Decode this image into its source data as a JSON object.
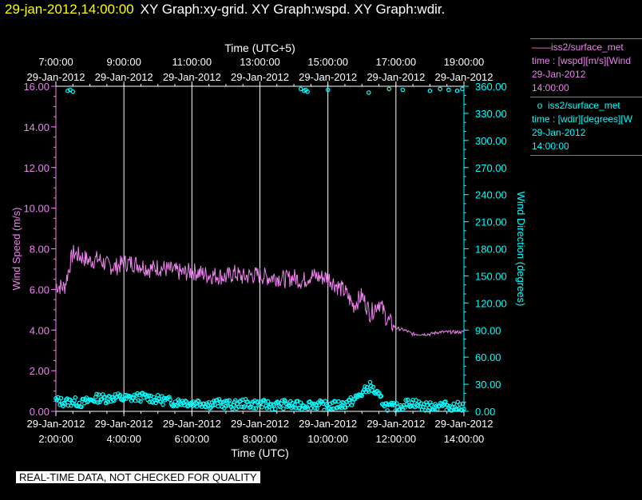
{
  "header": {
    "timestamp": "29-jan-2012,14:00:00",
    "titles": "XY Graph:xy-grid.  XY Graph:wspd.  XY Graph:wdir."
  },
  "legend": {
    "series1_name": "iss2/surface_met",
    "series1_line2": "time : [wspd][m/s][Wind",
    "series1_line3": "29-Jan-2012",
    "series1_line4": "14:00:00",
    "series2_name": "iss2/surface_met",
    "series2_line2": "time : [wdir][degrees][W",
    "series2_line3": "29-Jan-2012",
    "series2_line4": "14:00:00"
  },
  "footer": {
    "quality_note": "REAL-TIME DATA, NOT CHECKED FOR QUALITY"
  },
  "colors": {
    "speed": "#ee82ee",
    "direction": "#00ffff",
    "grid": "#ffffff",
    "header": "#ffff00"
  },
  "chart_data": {
    "type": "line",
    "top_axis_title": "Time (UTC+5)",
    "bottom_axis_title": "Time (UTC)",
    "xlim_hours_utc": [
      2,
      14
    ],
    "x_ticks_bottom": [
      {
        "date": "29-Jan-2012",
        "time": "2:00:00"
      },
      {
        "date": "29-Jan-2012",
        "time": "4:00:00"
      },
      {
        "date": "29-Jan-2012",
        "time": "6:00:00"
      },
      {
        "date": "29-Jan-2012",
        "time": "8:00:00"
      },
      {
        "date": "29-Jan-2012",
        "time": "10:00:00"
      },
      {
        "date": "29-Jan-2012",
        "time": "12:00:00"
      },
      {
        "date": "29-Jan-2012",
        "time": "14:00:00"
      }
    ],
    "x_ticks_top": [
      {
        "time": "7:00:00",
        "date": "29-Jan-2012"
      },
      {
        "time": "9:00:00",
        "date": "29-Jan-2012"
      },
      {
        "time": "11:00:00",
        "date": "29-Jan-2012"
      },
      {
        "time": "13:00:00",
        "date": "29-Jan-2012"
      },
      {
        "time": "15:00:00",
        "date": "29-Jan-2012"
      },
      {
        "time": "17:00:00",
        "date": "29-Jan-2012"
      },
      {
        "time": "19:00:00",
        "date": "29-Jan-2012"
      }
    ],
    "left_axis": {
      "label": "Wind Speed (m/s)",
      "ylim": [
        0,
        16
      ],
      "ticks": [
        "0.00",
        "2.00",
        "4.00",
        "6.00",
        "8.00",
        "10.00",
        "12.00",
        "14.00",
        "16.00"
      ]
    },
    "right_axis": {
      "label": "Wind Direction (degrees)",
      "ylim": [
        0,
        360
      ],
      "ticks": [
        "0.00",
        "30.00",
        "60.00",
        "90.00",
        "120.00",
        "150.00",
        "180.00",
        "210.00",
        "240.00",
        "270.00",
        "300.00",
        "330.00",
        "360.00"
      ]
    },
    "grid": "vertical",
    "series": [
      {
        "name": "iss2/surface_met",
        "quantity": "wspd",
        "axis": "left",
        "style": "line",
        "x_hours_utc": [
          2.0,
          2.25,
          2.5,
          2.75,
          3.0,
          3.25,
          3.5,
          3.75,
          4.0,
          4.25,
          4.5,
          4.75,
          5.0,
          5.25,
          5.5,
          5.75,
          6.0,
          6.25,
          6.5,
          6.75,
          7.0,
          7.25,
          7.5,
          7.75,
          8.0,
          8.25,
          8.5,
          8.75,
          9.0,
          9.25,
          9.5,
          9.75,
          10.0,
          10.25,
          10.5,
          10.75,
          11.0,
          11.25,
          11.5,
          11.75,
          12.0,
          12.25,
          12.5,
          12.75,
          13.0,
          13.25,
          13.5,
          13.75,
          14.0
        ],
        "values": [
          6.2,
          6.1,
          7.8,
          7.6,
          7.4,
          7.5,
          7.2,
          7.1,
          7.3,
          7.3,
          7.2,
          7.0,
          7.1,
          7.0,
          6.9,
          6.8,
          6.9,
          6.8,
          6.7,
          6.7,
          6.6,
          6.8,
          6.6,
          6.7,
          6.7,
          6.6,
          6.6,
          6.5,
          6.6,
          6.4,
          6.7,
          6.6,
          6.6,
          6.2,
          5.9,
          5.2,
          5.7,
          4.8,
          5.4,
          4.5,
          4.1,
          4.0,
          3.8,
          3.8,
          3.8,
          3.9,
          3.9,
          3.9,
          3.9
        ]
      },
      {
        "name": "iss2/surface_met",
        "quantity": "wdir",
        "axis": "right",
        "style": "points",
        "x_hours_utc": [
          2.0,
          2.25,
          2.5,
          2.75,
          3.0,
          3.25,
          3.5,
          3.75,
          4.0,
          4.25,
          4.5,
          4.75,
          5.0,
          5.25,
          5.5,
          5.75,
          6.0,
          6.25,
          6.5,
          6.75,
          7.0,
          7.25,
          7.5,
          7.75,
          8.0,
          8.25,
          8.5,
          8.75,
          9.0,
          9.25,
          9.5,
          9.75,
          10.0,
          10.25,
          10.5,
          10.75,
          11.0,
          11.25,
          11.5,
          11.75,
          12.0,
          12.25,
          12.5,
          12.75,
          13.0,
          13.25,
          13.5,
          13.75,
          14.0
        ],
        "values": [
          12,
          10,
          11,
          9,
          12,
          15,
          14,
          16,
          14,
          15,
          16,
          15,
          13,
          12,
          10,
          11,
          9,
          10,
          8,
          9,
          8,
          7,
          9,
          8,
          8,
          7,
          7,
          8,
          6,
          7,
          8,
          7,
          6,
          7,
          8,
          12,
          20,
          28,
          16,
          5,
          4,
          8,
          10,
          6,
          5,
          7,
          6,
          5,
          6
        ],
        "wraparound_hours_utc": [
          2.35,
          2.42,
          2.5,
          9.2,
          9.3,
          9.35,
          9.4,
          10.0,
          11.2,
          11.8,
          12.2,
          13.0,
          13.3,
          13.55,
          13.8,
          13.95
        ],
        "wraparound_values": [
          355,
          356,
          354,
          357,
          355,
          356,
          354,
          356,
          353,
          357,
          356,
          355,
          357,
          356,
          355,
          357
        ]
      }
    ]
  }
}
